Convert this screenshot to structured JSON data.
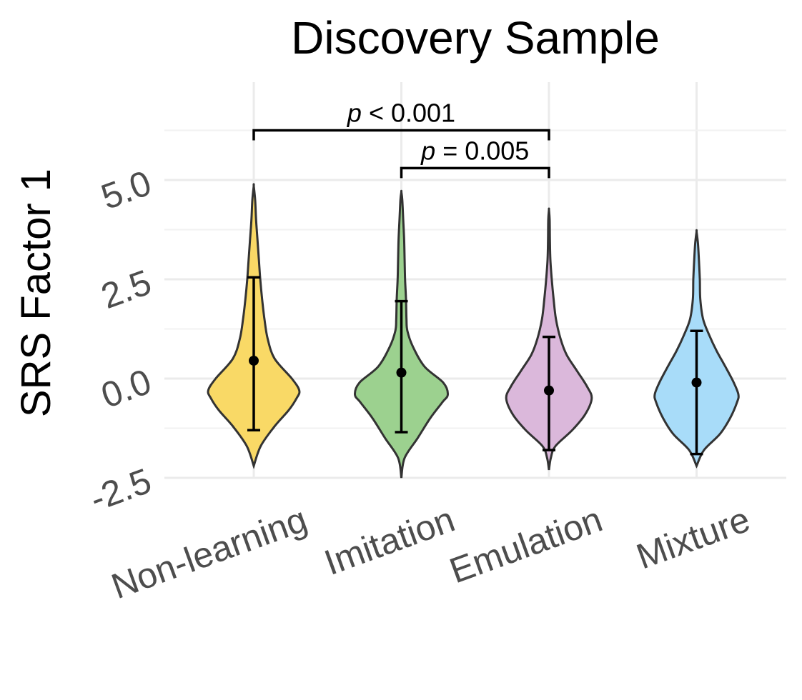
{
  "chart_data": {
    "type": "violin",
    "title": "Discovery Sample",
    "xlabel": "",
    "ylabel": "SRS Factor 1",
    "ylim": [
      -2.5,
      7.0
    ],
    "yticks": [
      -2.5,
      0.0,
      2.5,
      5.0
    ],
    "ytick_labels": [
      "-2.5",
      "0.0",
      "2.5",
      "5.0"
    ],
    "grid": true,
    "categories": [
      "Non-learning",
      "Imitation",
      "Emulation",
      "Mixture"
    ],
    "groups": [
      {
        "name": "Non-learning",
        "color": "#f9d966",
        "min": -2.2,
        "max": 4.85,
        "mean": 0.45,
        "error_low": -1.3,
        "error_high": 2.55,
        "density": [
          [
            -2.2,
            0.0
          ],
          [
            -1.7,
            0.15
          ],
          [
            -1.2,
            0.45
          ],
          [
            -0.8,
            0.75
          ],
          [
            -0.5,
            0.92
          ],
          [
            -0.3,
            0.98
          ],
          [
            0.0,
            0.82
          ],
          [
            0.5,
            0.45
          ],
          [
            1.0,
            0.3
          ],
          [
            1.5,
            0.23
          ],
          [
            2.0,
            0.18
          ],
          [
            2.5,
            0.14
          ],
          [
            3.0,
            0.11
          ],
          [
            3.5,
            0.08
          ],
          [
            4.0,
            0.05
          ],
          [
            4.5,
            0.03
          ],
          [
            4.85,
            0.0
          ]
        ]
      },
      {
        "name": "Imitation",
        "color": "#9cd18f",
        "min": -2.5,
        "max": 4.7,
        "mean": 0.15,
        "error_low": -1.35,
        "error_high": 1.95,
        "density": [
          [
            -2.5,
            0.0
          ],
          [
            -2.0,
            0.07
          ],
          [
            -1.5,
            0.35
          ],
          [
            -1.0,
            0.62
          ],
          [
            -0.6,
            0.88
          ],
          [
            -0.4,
            1.0
          ],
          [
            -0.1,
            0.9
          ],
          [
            0.3,
            0.5
          ],
          [
            0.8,
            0.25
          ],
          [
            1.2,
            0.13
          ],
          [
            1.5,
            0.11
          ],
          [
            2.0,
            0.1
          ],
          [
            2.5,
            0.08
          ],
          [
            3.0,
            0.07
          ],
          [
            3.5,
            0.06
          ],
          [
            4.0,
            0.04
          ],
          [
            4.5,
            0.02
          ],
          [
            4.7,
            0.0
          ]
        ]
      },
      {
        "name": "Emulation",
        "color": "#dbb8db",
        "min": -2.3,
        "max": 4.25,
        "mean": -0.3,
        "error_low": -1.8,
        "error_high": 1.05,
        "density": [
          [
            -2.3,
            0.0
          ],
          [
            -2.0,
            0.04
          ],
          [
            -1.7,
            0.14
          ],
          [
            -1.3,
            0.5
          ],
          [
            -0.9,
            0.78
          ],
          [
            -0.5,
            0.92
          ],
          [
            -0.2,
            0.82
          ],
          [
            0.2,
            0.6
          ],
          [
            0.6,
            0.38
          ],
          [
            1.0,
            0.25
          ],
          [
            1.5,
            0.15
          ],
          [
            2.0,
            0.1
          ],
          [
            2.5,
            0.06
          ],
          [
            3.0,
            0.03
          ],
          [
            3.5,
            0.02
          ],
          [
            4.0,
            0.015
          ],
          [
            4.25,
            0.0
          ]
        ]
      },
      {
        "name": "Mixture",
        "color": "#a8dcf9",
        "min": -2.2,
        "max": 3.7,
        "mean": -0.1,
        "error_low": -1.9,
        "error_high": 1.2,
        "density": [
          [
            -2.2,
            0.0
          ],
          [
            -1.8,
            0.16
          ],
          [
            -1.4,
            0.5
          ],
          [
            -1.0,
            0.72
          ],
          [
            -0.6,
            0.87
          ],
          [
            -0.4,
            0.9
          ],
          [
            -0.1,
            0.8
          ],
          [
            0.3,
            0.62
          ],
          [
            0.7,
            0.43
          ],
          [
            1.1,
            0.27
          ],
          [
            1.5,
            0.14
          ],
          [
            2.0,
            0.08
          ],
          [
            2.5,
            0.07
          ],
          [
            3.0,
            0.05
          ],
          [
            3.4,
            0.03
          ],
          [
            3.7,
            0.0
          ]
        ]
      }
    ],
    "comparisons": [
      {
        "from": "Non-learning",
        "to": "Emulation",
        "y": 6.25,
        "p_symbol": "p",
        "p_text": "< 0.001"
      },
      {
        "from": "Imitation",
        "to": "Emulation",
        "y": 5.3,
        "p_symbol": "p",
        "p_text": "= 0.005"
      }
    ]
  }
}
